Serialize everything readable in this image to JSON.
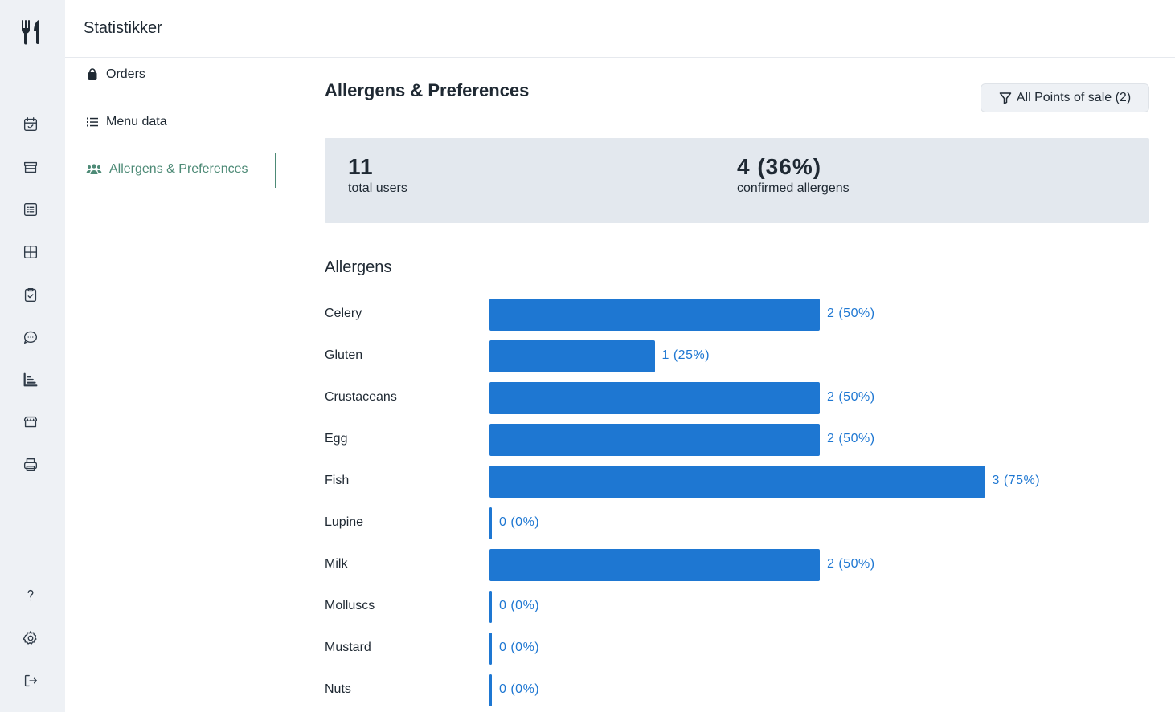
{
  "header": {
    "title": "Statistikker"
  },
  "subnav": {
    "items": [
      {
        "label": "Orders",
        "icon": "shopping-bag-icon",
        "active": false
      },
      {
        "label": "Menu data",
        "icon": "list-icon",
        "active": false
      },
      {
        "label": "Allergens & Preferences",
        "icon": "users-icon",
        "active": true
      }
    ]
  },
  "main": {
    "title": "Allergens & Preferences",
    "filter_label": "All Points of sale (2)",
    "stats": [
      {
        "value": "11",
        "label": "total users"
      },
      {
        "value": "4 (36%)",
        "label": "confirmed allergens"
      }
    ],
    "section_title": "Allergens"
  },
  "colors": {
    "accent": "#4d8a76",
    "bar": "#1e77d2",
    "rail_bg": "#eef1f5",
    "stats_bg": "#e3e8ee"
  },
  "chart_data": {
    "type": "bar",
    "orientation": "horizontal",
    "categories": [
      "Celery",
      "Gluten",
      "Crustaceans",
      "Egg",
      "Fish",
      "Lupine",
      "Milk",
      "Molluscs",
      "Mustard",
      "Nuts"
    ],
    "values": [
      2,
      1,
      2,
      2,
      3,
      0,
      2,
      0,
      0,
      0
    ],
    "value_labels": [
      "2 (50%)",
      "1 (25%)",
      "2 (50%)",
      "2 (50%)",
      "3 (75%)",
      "0 (0%)",
      "2 (50%)",
      "0 (0%)",
      "0 (0%)",
      "0 (0%)"
    ],
    "xlim": [
      0,
      4
    ]
  }
}
